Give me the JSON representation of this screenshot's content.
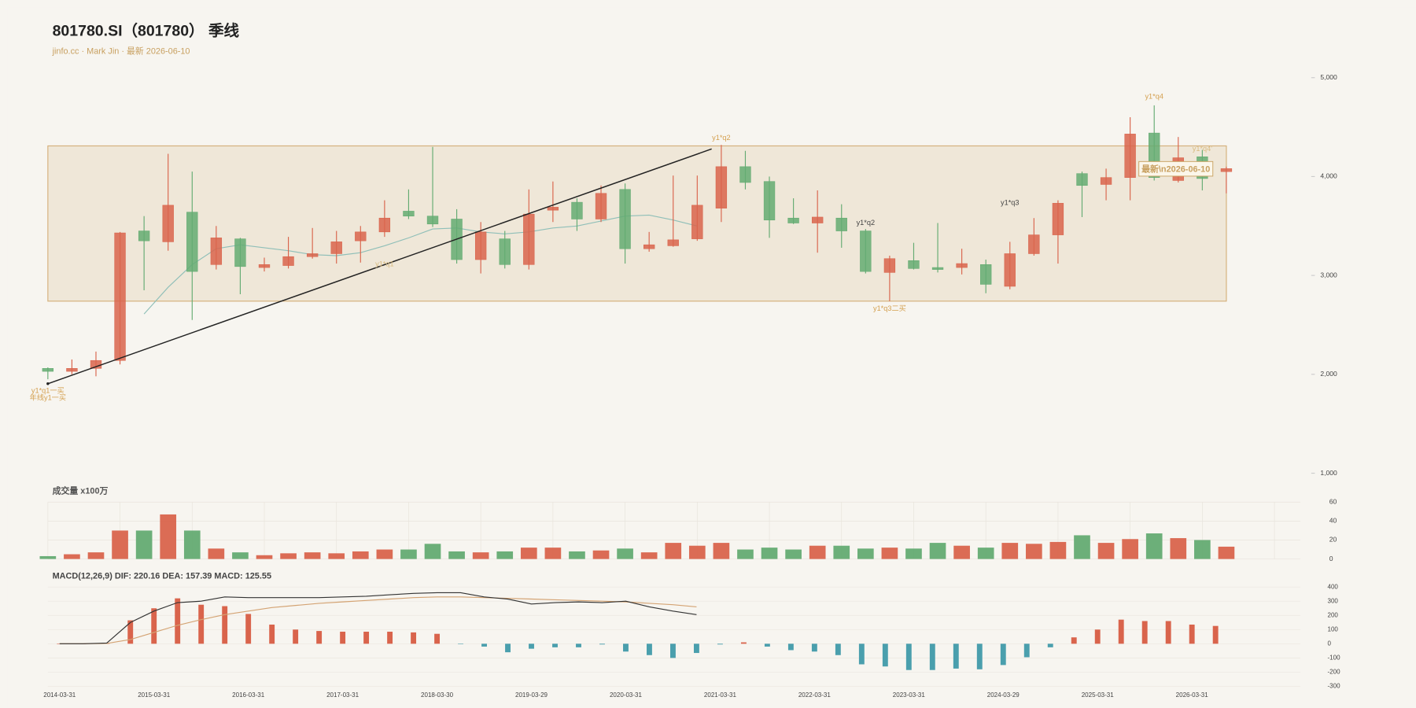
{
  "chart_data": [
    {
      "type": "candlestick",
      "title": "801780.SI（801780） 季线",
      "subtitle": "jinfo.cc · Mark Jin · 最新 2026-06-10",
      "open": [
        2060,
        2030,
        2060,
        2140,
        3450,
        3340,
        3640,
        3110,
        3370,
        3080,
        3100,
        3190,
        3220,
        3350,
        3440,
        3650,
        3600,
        3570,
        3160,
        3370,
        3110,
        3660,
        3740,
        3570,
        3870,
        3270,
        3300,
        3370,
        3680,
        4100,
        3950,
        3580,
        3530,
        3580,
        3450,
        3030,
        3150,
        3080,
        3080,
        3110,
        2890,
        3220,
        3410,
        4030,
        3920,
        3990,
        4440,
        3960,
        4200,
        4050
      ],
      "high": [
        2070,
        2150,
        2230,
        3440,
        3600,
        4230,
        4050,
        3500,
        3380,
        3180,
        3390,
        3480,
        3450,
        3500,
        3760,
        3870,
        4300,
        3670,
        3540,
        3450,
        3870,
        3950,
        3780,
        3910,
        3930,
        3440,
        4010,
        4010,
        4320,
        4260,
        4000,
        3780,
        3860,
        3720,
        3470,
        3200,
        3330,
        3530,
        3270,
        3160,
        3340,
        3580,
        3760,
        4050,
        4080,
        4600,
        4720,
        4400,
        4270,
        4100
      ],
      "low": [
        1950,
        2000,
        1980,
        2100,
        2850,
        3250,
        2550,
        3060,
        2810,
        3040,
        3070,
        3170,
        3120,
        3130,
        3390,
        3570,
        3490,
        3120,
        3020,
        3070,
        3060,
        3540,
        3450,
        3540,
        3120,
        3240,
        3290,
        3350,
        3540,
        3870,
        3380,
        3520,
        3230,
        3280,
        3020,
        2740,
        3060,
        3030,
        3010,
        2820,
        2860,
        3200,
        3120,
        3590,
        3760,
        3760,
        3960,
        3940,
        3860,
        3830
      ],
      "close": [
        2030,
        2060,
        2140,
        3430,
        3350,
        3710,
        3040,
        3380,
        3090,
        3110,
        3190,
        3220,
        3340,
        3440,
        3580,
        3600,
        3520,
        3160,
        3440,
        3110,
        3620,
        3690,
        3570,
        3830,
        3270,
        3310,
        3360,
        3710,
        4100,
        3940,
        3560,
        3530,
        3590,
        3450,
        3040,
        3170,
        3070,
        3060,
        3120,
        2910,
        3220,
        3410,
        3730,
        3910,
        3990,
        4430,
        3990,
        4190,
        3980,
        4080
      ],
      "up_color": "#d9644c",
      "down_color": "#64ab72",
      "ylim": [
        1000,
        5000
      ],
      "yticks": [
        {
          "value": 1000,
          "label": "1,000"
        },
        {
          "value": 2000,
          "label": "2,000"
        },
        {
          "value": 3000,
          "label": "3,000"
        },
        {
          "value": 4000,
          "label": "4,000"
        },
        {
          "value": 5000,
          "label": "5,000"
        }
      ],
      "ma": {
        "color": "#8fbfb8",
        "values": [
          null,
          null,
          null,
          null,
          2610,
          2880,
          3110,
          3270,
          3310,
          3280,
          3250,
          3210,
          3200,
          3230,
          3300,
          3380,
          3470,
          3480,
          3440,
          3420,
          3440,
          3480,
          3500,
          3550,
          3600,
          3610,
          3560,
          3500,
          null,
          null,
          null,
          null,
          null,
          null,
          null,
          null,
          null,
          null,
          null,
          null,
          null,
          null,
          null,
          null,
          null,
          null,
          null,
          null,
          null,
          null
        ]
      },
      "zone": {
        "low": 2740,
        "high": 4310,
        "color": "#d4b07a"
      },
      "trend_line": {
        "from": {
          "x": 0,
          "y": 1905
        },
        "to": {
          "x": 27.6,
          "y": 4279
        },
        "color": "#222222"
      },
      "annotations": [
        {
          "text": "y1*q1一买",
          "x": 0,
          "y": 1832,
          "color": "#d4a050"
        },
        {
          "text": "年线y1一买",
          "x": 0,
          "y": 1759,
          "color": "#d4a050"
        },
        {
          "text": "y1*q2",
          "x": 28,
          "y": 4388,
          "color": "#d4a050"
        },
        {
          "text": "y1*q1",
          "x": 14,
          "y": 3110,
          "color": "#d8bb80"
        },
        {
          "text": "y1*q2",
          "x": 34,
          "y": 3530,
          "color": "#444444"
        },
        {
          "text": "y1*q3",
          "x": 40,
          "y": 3731,
          "color": "#444444"
        },
        {
          "text": "y1*q3二买",
          "x": 35,
          "y": 2663,
          "color": "#d4a050"
        },
        {
          "text": "y1*q4",
          "x": 46,
          "y": 4808,
          "color": "#d4a050"
        },
        {
          "text": "y1*q4'",
          "x": 48,
          "y": 4279,
          "color": "#d8bb80"
        },
        {
          "text": "最新\\n2026-06-10",
          "x": 46.9,
          "y": 4069,
          "color": "#c8a060",
          "box": true
        }
      ]
    },
    {
      "type": "bar",
      "title": "成交量 x100万",
      "values": [
        3,
        5,
        7,
        30,
        30,
        47,
        30,
        11,
        7,
        4,
        6,
        7,
        6,
        8,
        10,
        10,
        16,
        8,
        7,
        8,
        12,
        12,
        8,
        9,
        11,
        7,
        17,
        14,
        17,
        10,
        12,
        10,
        14,
        14,
        11,
        12,
        11,
        17,
        14,
        12,
        17,
        16,
        18,
        25,
        17,
        21,
        27,
        22,
        20,
        13
      ],
      "ylim": [
        0,
        60
      ],
      "yticks": [
        0,
        20,
        40,
        60
      ],
      "grid": true
    },
    {
      "type": "macd",
      "title": "MACD(12,26,9) DIF: 220.16 DEA: 157.39 MACD: 125.55",
      "categories": [
        "2014-03-31",
        null,
        null,
        null,
        "2015-03-31",
        null,
        null,
        null,
        "2016-03-31",
        null,
        null,
        null,
        "2017-03-31",
        null,
        null,
        null,
        "2018-03-30",
        null,
        null,
        null,
        "2019-03-29",
        null,
        null,
        null,
        "2020-03-31",
        null,
        null,
        null,
        "2021-03-31",
        null,
        null,
        null,
        "2022-03-31",
        null,
        null,
        null,
        "2023-03-31",
        null,
        null,
        null,
        "2024-03-29",
        null,
        null,
        null,
        "2025-03-31",
        null,
        null,
        null,
        "2026-03-31",
        null
      ],
      "dif": {
        "color": "#333333",
        "values": [
          0,
          0,
          5,
          150,
          230,
          290,
          300,
          330,
          325,
          325,
          325,
          325,
          330,
          335,
          345,
          355,
          360,
          360,
          330,
          315,
          280,
          290,
          295,
          290,
          300,
          260,
          230,
          205,
          null,
          null,
          null,
          null,
          null,
          null,
          null,
          null,
          null,
          null,
          null,
          null,
          null,
          null,
          null,
          null,
          null,
          null,
          null,
          null,
          null,
          null
        ]
      },
      "dea": {
        "color": "#d4a373",
        "values": [
          0,
          0,
          2,
          30,
          80,
          130,
          170,
          205,
          230,
          255,
          270,
          285,
          295,
          305,
          315,
          325,
          330,
          330,
          325,
          320,
          315,
          310,
          305,
          300,
          295,
          285,
          275,
          260,
          null,
          null,
          null,
          null,
          null,
          null,
          null,
          null,
          null,
          null,
          null,
          null,
          null,
          null,
          null,
          null,
          null,
          null,
          null,
          null,
          null,
          null
        ]
      },
      "macd": {
        "up_color": "#d9644c",
        "down_color": "#4a9fad",
        "values": [
          0,
          0,
          3,
          165,
          250,
          320,
          275,
          265,
          210,
          135,
          100,
          90,
          85,
          85,
          85,
          80,
          70,
          -2,
          -20,
          -60,
          -35,
          -25,
          -25,
          -5,
          -55,
          -80,
          -100,
          -65,
          -5,
          10,
          -20,
          -45,
          -55,
          -80,
          -145,
          -160,
          -185,
          -185,
          -175,
          -180,
          -150,
          -95,
          -25,
          45,
          100,
          170,
          160,
          160,
          135,
          125.55
        ]
      },
      "ylim": [
        -300,
        400
      ],
      "yticks": [
        -300,
        -200,
        -100,
        0,
        100,
        200,
        300,
        400
      ],
      "grid": true
    }
  ]
}
